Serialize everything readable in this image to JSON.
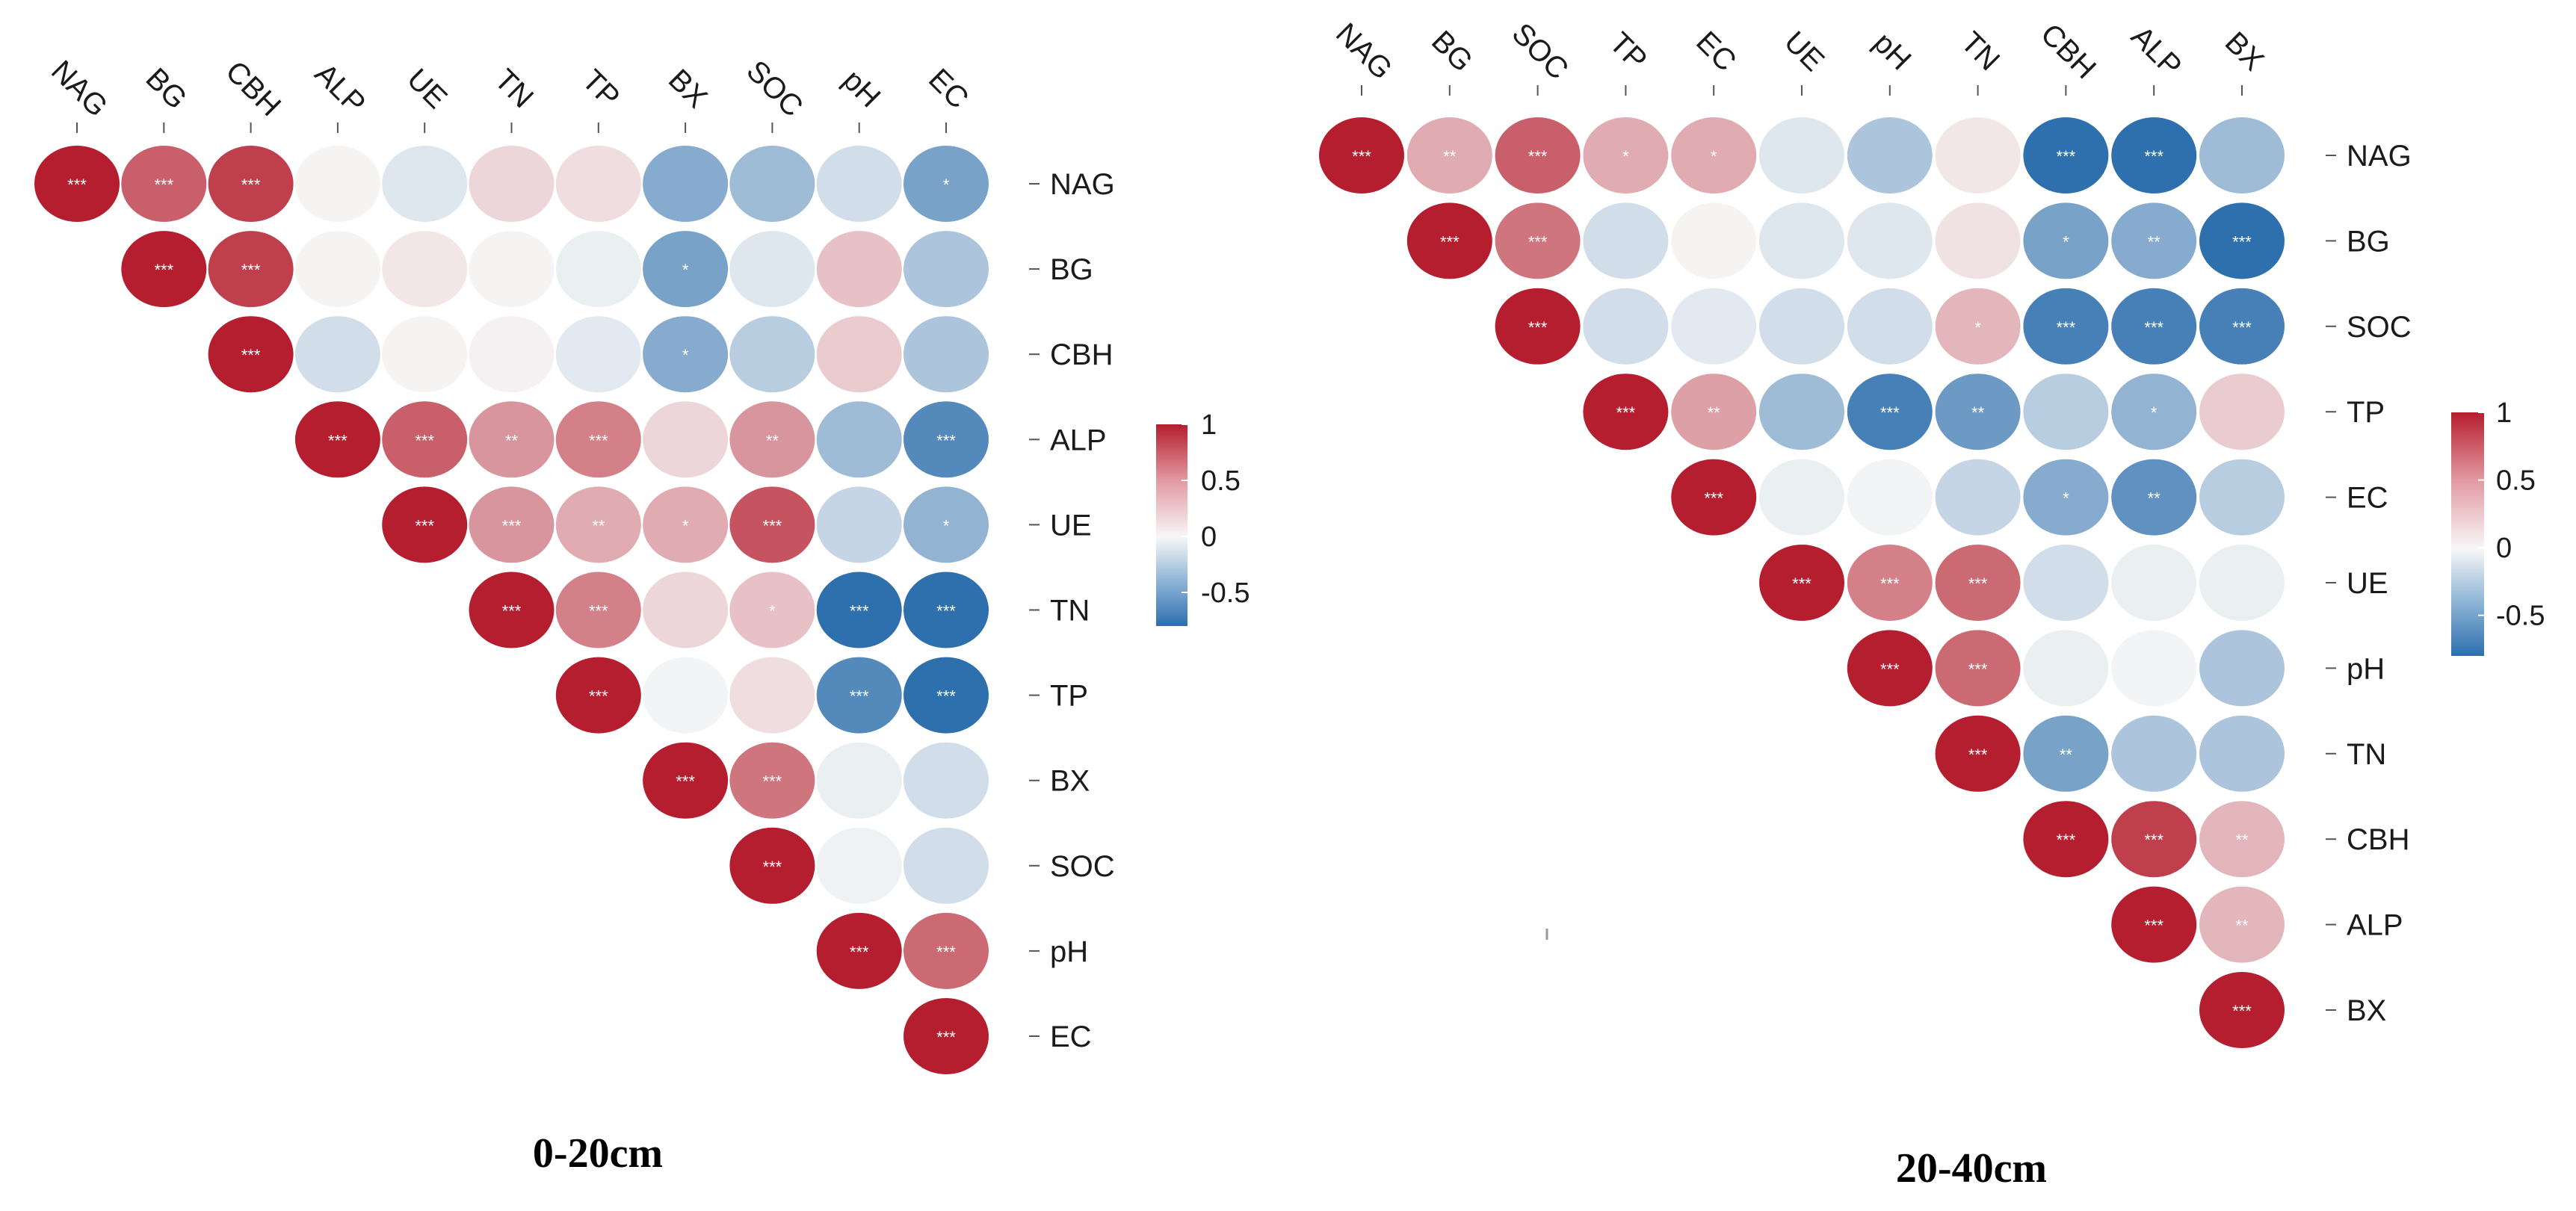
{
  "colors": {
    "negative_strong": "#2e6fae",
    "neutral": "#f7f7f7",
    "positive_strong": "#b51e2e",
    "label": "#1a1a1a",
    "significance_text": "#ffffff"
  },
  "chart_data": [
    {
      "type": "heatmap",
      "subtype": "correlation-circle-upper-triangle",
      "title": "0-20cm",
      "column_labels": [
        "NAG",
        "BG",
        "CBH",
        "ALP",
        "UE",
        "TN",
        "TP",
        "BX",
        "SOC",
        "pH",
        "EC"
      ],
      "row_labels": [
        "NAG",
        "BG",
        "CBH",
        "ALP",
        "UE",
        "TN",
        "TP",
        "BX",
        "SOC",
        "pH",
        "EC"
      ],
      "color_range": [
        -0.8,
        1
      ],
      "legend": {
        "ticks": [
          1,
          0.5,
          0,
          -0.5
        ],
        "tick_labels": [
          "1",
          "0.5",
          "0",
          "-0.5"
        ],
        "placement": "right"
      },
      "values": [
        [
          1.0,
          0.7,
          0.85,
          0.02,
          -0.1,
          0.15,
          0.12,
          -0.45,
          -0.35,
          -0.15,
          -0.5
        ],
        [
          null,
          1.0,
          0.85,
          0.02,
          0.08,
          0.02,
          -0.05,
          -0.5,
          -0.1,
          0.25,
          -0.3
        ],
        [
          null,
          null,
          1.0,
          -0.15,
          0.02,
          0.03,
          -0.08,
          -0.45,
          -0.25,
          0.2,
          -0.3
        ],
        [
          null,
          null,
          null,
          1.0,
          0.7,
          0.45,
          0.55,
          0.15,
          0.45,
          -0.35,
          -0.65
        ],
        [
          null,
          null,
          null,
          null,
          1.0,
          0.45,
          0.35,
          0.35,
          0.75,
          -0.2,
          -0.4
        ],
        [
          null,
          null,
          null,
          null,
          null,
          1.0,
          0.55,
          0.15,
          0.25,
          -0.8,
          -0.9
        ],
        [
          null,
          null,
          null,
          null,
          null,
          null,
          1.0,
          -0.02,
          0.12,
          -0.65,
          -0.85
        ],
        [
          null,
          null,
          null,
          null,
          null,
          null,
          null,
          1.0,
          0.6,
          -0.05,
          -0.15
        ],
        [
          null,
          null,
          null,
          null,
          null,
          null,
          null,
          null,
          1.0,
          -0.03,
          -0.15
        ],
        [
          null,
          null,
          null,
          null,
          null,
          null,
          null,
          null,
          null,
          1.0,
          0.65
        ],
        [
          null,
          null,
          null,
          null,
          null,
          null,
          null,
          null,
          null,
          null,
          1.0
        ]
      ],
      "significance": [
        [
          "***",
          "***",
          "***",
          "",
          "",
          "",
          "",
          "",
          "",
          "",
          "*"
        ],
        [
          null,
          "***",
          "***",
          "",
          "",
          "",
          "",
          "*",
          "",
          "",
          ""
        ],
        [
          null,
          null,
          "***",
          "",
          "",
          "",
          "",
          "*",
          "",
          "",
          ""
        ],
        [
          null,
          null,
          null,
          "***",
          "***",
          "**",
          "***",
          "",
          "**",
          "",
          "***"
        ],
        [
          null,
          null,
          null,
          null,
          "***",
          "***",
          "**",
          "*",
          "***",
          "",
          "*"
        ],
        [
          null,
          null,
          null,
          null,
          null,
          "***",
          "***",
          "",
          "*",
          "***",
          "***"
        ],
        [
          null,
          null,
          null,
          null,
          null,
          null,
          "***",
          "",
          "",
          "***",
          "***"
        ],
        [
          null,
          null,
          null,
          null,
          null,
          null,
          null,
          "***",
          "***",
          "",
          ""
        ],
        [
          null,
          null,
          null,
          null,
          null,
          null,
          null,
          null,
          "***",
          "",
          ""
        ],
        [
          null,
          null,
          null,
          null,
          null,
          null,
          null,
          null,
          null,
          "***",
          "***"
        ],
        [
          null,
          null,
          null,
          null,
          null,
          null,
          null,
          null,
          null,
          null,
          "***"
        ]
      ]
    },
    {
      "type": "heatmap",
      "subtype": "correlation-circle-upper-triangle",
      "title": "20-40cm",
      "column_labels": [
        "NAG",
        "BG",
        "SOC",
        "TP",
        "EC",
        "UE",
        "pH",
        "TN",
        "CBH",
        "ALP",
        "BX"
      ],
      "row_labels": [
        "NAG",
        "BG",
        "SOC",
        "TP",
        "EC",
        "UE",
        "pH",
        "TN",
        "CBH",
        "ALP",
        "BX"
      ],
      "color_range": [
        -0.8,
        1
      ],
      "legend": {
        "ticks": [
          1,
          0.5,
          0,
          -0.5
        ],
        "tick_labels": [
          "1",
          "0.5",
          "0",
          "-0.5"
        ],
        "placement": "right"
      },
      "values": [
        [
          1.0,
          0.35,
          0.7,
          0.35,
          0.35,
          -0.1,
          -0.3,
          0.08,
          -0.85,
          -0.9,
          -0.35
        ],
        [
          null,
          1.0,
          0.6,
          -0.15,
          0.02,
          -0.1,
          -0.1,
          0.1,
          -0.5,
          -0.45,
          -0.8
        ],
        [
          null,
          null,
          1.0,
          -0.15,
          -0.08,
          -0.15,
          -0.15,
          0.3,
          -0.7,
          -0.7,
          -0.7
        ],
        [
          null,
          null,
          null,
          1.0,
          0.4,
          -0.35,
          -0.7,
          -0.55,
          -0.25,
          -0.4,
          0.2
        ],
        [
          null,
          null,
          null,
          null,
          1.0,
          -0.05,
          -0.02,
          -0.2,
          -0.45,
          -0.6,
          -0.25
        ],
        [
          null,
          null,
          null,
          null,
          null,
          1.0,
          0.55,
          0.65,
          -0.15,
          -0.05,
          -0.05
        ],
        [
          null,
          null,
          null,
          null,
          null,
          null,
          1.0,
          0.65,
          -0.05,
          -0.02,
          -0.3
        ],
        [
          null,
          null,
          null,
          null,
          null,
          null,
          null,
          1.0,
          -0.5,
          -0.3,
          -0.3
        ],
        [
          null,
          null,
          null,
          null,
          null,
          null,
          null,
          null,
          1.0,
          0.85,
          0.3
        ],
        [
          null,
          null,
          null,
          null,
          null,
          null,
          null,
          null,
          null,
          1.0,
          0.3
        ],
        [
          null,
          null,
          null,
          null,
          null,
          null,
          null,
          null,
          null,
          null,
          1.0
        ]
      ],
      "significance": [
        [
          "***",
          "**",
          "***",
          "*",
          "*",
          "",
          "",
          "",
          "***",
          "***",
          ""
        ],
        [
          null,
          "***",
          "***",
          "",
          "",
          "",
          "",
          "",
          "*",
          "**",
          "***"
        ],
        [
          null,
          null,
          "***",
          "",
          "",
          "",
          "",
          "*",
          "***",
          "***",
          "***"
        ],
        [
          null,
          null,
          null,
          "***",
          "**",
          "",
          "***",
          "**",
          "",
          "*",
          ""
        ],
        [
          null,
          null,
          null,
          null,
          "***",
          "",
          "",
          "",
          "*",
          "**",
          ""
        ],
        [
          null,
          null,
          null,
          null,
          null,
          "***",
          "***",
          "***",
          "",
          "",
          ""
        ],
        [
          null,
          null,
          null,
          null,
          null,
          null,
          "***",
          "***",
          "",
          "",
          ""
        ],
        [
          null,
          null,
          null,
          null,
          null,
          null,
          null,
          "***",
          "**",
          "",
          ""
        ],
        [
          null,
          null,
          null,
          null,
          null,
          null,
          null,
          null,
          "***",
          "***",
          "**"
        ],
        [
          null,
          null,
          null,
          null,
          null,
          null,
          null,
          null,
          null,
          "***",
          "**"
        ],
        [
          null,
          null,
          null,
          null,
          null,
          null,
          null,
          null,
          null,
          null,
          "***"
        ]
      ]
    }
  ]
}
